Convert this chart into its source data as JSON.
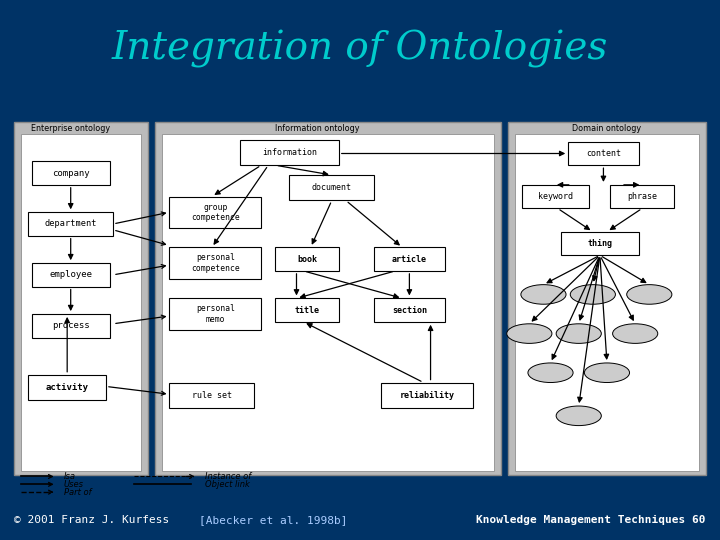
{
  "title": "Integration of Ontologies",
  "title_color": "#00CCCC",
  "title_bg": "#003366",
  "footer_bg": "#3333CC",
  "footer_text_left": "© 2001 Franz J. Kurfess",
  "footer_text_mid": "[Abecker et al. 1998b]",
  "footer_text_right": "Knowledge Management Techniques 60",
  "main_bg": "#AAAAAA",
  "white": "#FFFFFF",
  "black": "#000000",
  "oval_bg": "#CCCCCC"
}
